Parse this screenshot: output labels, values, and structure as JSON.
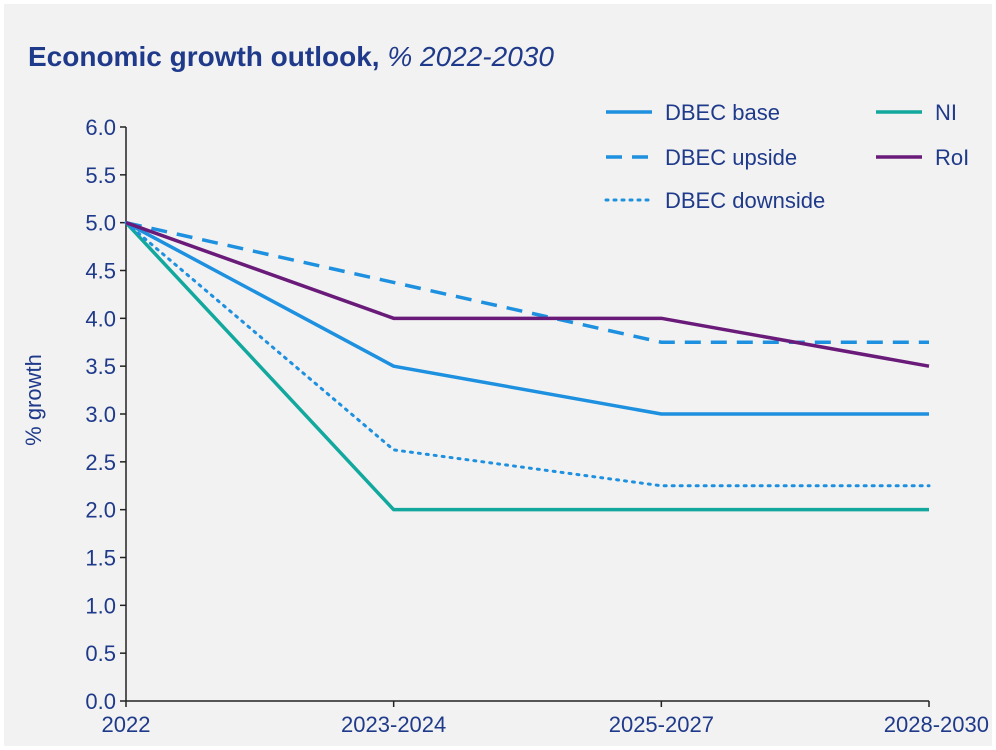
{
  "title_main": "Economic growth outlook,",
  "title_sub": "% 2022-2030",
  "chart_data": {
    "type": "line",
    "title": "Economic growth outlook, % 2022-2030",
    "ylabel": "% growth",
    "xlabel": "",
    "categories": [
      "2022",
      "2023-2024",
      "2025-2027",
      "2028-2030"
    ],
    "ylim": [
      0,
      6
    ],
    "yticks": [
      "0.0",
      "0.5",
      "1.0",
      "1.5",
      "2.0",
      "2.5",
      "3.0",
      "3.5",
      "4.0",
      "4.5",
      "5.0",
      "5.5",
      "6.0"
    ],
    "grid": false,
    "legend_position": "top-right",
    "series": [
      {
        "name": "DBEC base",
        "values": [
          5.0,
          3.5,
          3.0,
          3.0
        ],
        "color": "#1e90e0",
        "style": "solid"
      },
      {
        "name": "DBEC upside",
        "values": [
          5.0,
          4.375,
          3.75,
          3.75
        ],
        "color": "#1e90e0",
        "style": "dashed"
      },
      {
        "name": "DBEC downside",
        "values": [
          5.0,
          2.625,
          2.25,
          2.25
        ],
        "color": "#1e90e0",
        "style": "dotted"
      },
      {
        "name": "NI",
        "values": [
          5.0,
          2.0,
          2.0,
          2.0
        ],
        "color": "#13a89e",
        "style": "solid"
      },
      {
        "name": "RoI",
        "values": [
          5.0,
          4.0,
          4.0,
          3.5
        ],
        "color": "#6a1b7a",
        "style": "solid"
      }
    ]
  }
}
